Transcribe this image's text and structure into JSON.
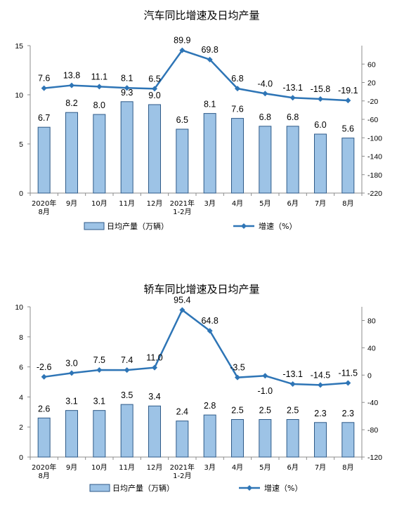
{
  "colors": {
    "bar_fill": "#9DC3E6",
    "bar_stroke": "#2E5A88",
    "line": "#2E75B6",
    "axis": "#8C8C8C"
  },
  "chart_data": [
    {
      "type": "bar+line",
      "title": "汽车同比增速及日均产量",
      "categories": [
        "2020年\n8月",
        "9月",
        "10月",
        "11月",
        "12月",
        "2021年\n1-2月",
        "3月",
        "4月",
        "5月",
        "6月",
        "7月",
        "8月"
      ],
      "series": [
        {
          "name": "日均产量（万辆）",
          "kind": "bar",
          "axis": "left",
          "values": [
            6.7,
            8.2,
            8.0,
            9.3,
            9.0,
            6.5,
            8.1,
            7.6,
            6.8,
            6.8,
            6.0,
            5.6
          ]
        },
        {
          "name": "增速（%）",
          "kind": "line",
          "axis": "right",
          "values": [
            7.6,
            13.8,
            11.1,
            8.1,
            6.5,
            89.9,
            69.8,
            6.8,
            -4.0,
            -13.1,
            -15.8,
            -19.1
          ]
        }
      ],
      "y_left": {
        "min": 0,
        "max": 15,
        "ticks": [
          0,
          5,
          10,
          15
        ]
      },
      "y_right": {
        "min": -220,
        "max": 100,
        "ticks": [
          -220,
          -180,
          -140,
          -100,
          -60,
          -20,
          20,
          60
        ]
      },
      "grid": false,
      "legend_position": "bottom"
    },
    {
      "type": "bar+line",
      "title": "轿车同比增速及日均产量",
      "categories": [
        "2020年\n8月",
        "9月",
        "10月",
        "11月",
        "12月",
        "2021年\n1-2月",
        "3月",
        "4月",
        "5月",
        "6月",
        "7月",
        "8月"
      ],
      "series": [
        {
          "name": "日均产量（万辆）",
          "kind": "bar",
          "axis": "left",
          "values": [
            2.6,
            3.1,
            3.1,
            3.5,
            3.4,
            2.4,
            2.8,
            2.5,
            2.5,
            2.5,
            2.3,
            2.3
          ]
        },
        {
          "name": "增速（%）",
          "kind": "line",
          "axis": "right",
          "values": [
            -2.6,
            3.0,
            7.5,
            7.4,
            11.0,
            95.4,
            64.8,
            -3.5,
            -1.0,
            -13.1,
            -14.5,
            -11.5
          ]
        }
      ],
      "y_left": {
        "min": 0,
        "max": 10,
        "ticks": [
          0,
          2,
          4,
          6,
          8,
          10
        ]
      },
      "y_right": {
        "min": -120,
        "max": 100,
        "ticks": [
          -120,
          -80,
          -40,
          0,
          40,
          80
        ]
      },
      "grid": false,
      "legend_position": "bottom"
    }
  ]
}
